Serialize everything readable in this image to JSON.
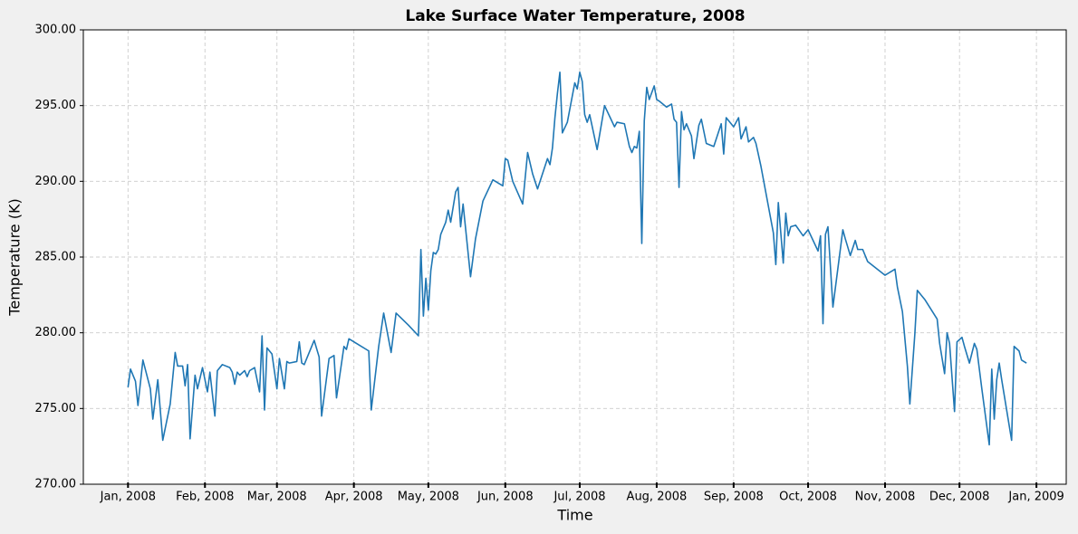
{
  "chart_data": {
    "type": "line",
    "title": "Lake Surface Water Temperature, 2008",
    "x_label": "Time",
    "y_label": "Temperature (K)",
    "xlim": [
      "2007-12-14",
      "2009-01-13"
    ],
    "xticks": [
      {
        "value": "2008-01-01",
        "label": "Jan, 2008"
      },
      {
        "value": "2008-02-01",
        "label": "Feb, 2008"
      },
      {
        "value": "2008-03-01",
        "label": "Mar, 2008"
      },
      {
        "value": "2008-04-01",
        "label": "Apr, 2008"
      },
      {
        "value": "2008-05-01",
        "label": "May, 2008"
      },
      {
        "value": "2008-06-01",
        "label": "Jun, 2008"
      },
      {
        "value": "2008-07-01",
        "label": "Jul, 2008"
      },
      {
        "value": "2008-08-01",
        "label": "Aug, 2008"
      },
      {
        "value": "2008-09-01",
        "label": "Sep, 2008"
      },
      {
        "value": "2008-10-01",
        "label": "Oct, 2008"
      },
      {
        "value": "2008-11-01",
        "label": "Nov, 2008"
      },
      {
        "value": "2008-12-01",
        "label": "Dec, 2008"
      },
      {
        "value": "2009-01-01",
        "label": "Jan, 2009"
      }
    ],
    "ylim": [
      270,
      300
    ],
    "yticks": [
      {
        "value": 270,
        "label": "270.00"
      },
      {
        "value": 275,
        "label": "275.00"
      },
      {
        "value": 280,
        "label": "280.00"
      },
      {
        "value": 285,
        "label": "285.00"
      },
      {
        "value": 290,
        "label": "290.00"
      },
      {
        "value": 295,
        "label": "295.00"
      },
      {
        "value": 300,
        "label": "300.00"
      }
    ],
    "grid": true,
    "color": "#1f77b4",
    "x": [
      "2008-01-01",
      "2008-01-02",
      "2008-01-04",
      "2008-01-05",
      "2008-01-07",
      "2008-01-10",
      "2008-01-11",
      "2008-01-13",
      "2008-01-15",
      "2008-01-18",
      "2008-01-20",
      "2008-01-21",
      "2008-01-23",
      "2008-01-24",
      "2008-01-25",
      "2008-01-26",
      "2008-01-28",
      "2008-01-29",
      "2008-01-31",
      "2008-02-02",
      "2008-02-03",
      "2008-02-05",
      "2008-02-06",
      "2008-02-08",
      "2008-02-11",
      "2008-02-12",
      "2008-02-13",
      "2008-02-14",
      "2008-02-15",
      "2008-02-17",
      "2008-02-18",
      "2008-02-19",
      "2008-02-21",
      "2008-02-23",
      "2008-02-24",
      "2008-02-25",
      "2008-02-26",
      "2008-02-28",
      "2008-03-01",
      "2008-03-02",
      "2008-03-04",
      "2008-03-05",
      "2008-03-06",
      "2008-03-09",
      "2008-03-10",
      "2008-03-11",
      "2008-03-12",
      "2008-03-16",
      "2008-03-18",
      "2008-03-19",
      "2008-03-22",
      "2008-03-24",
      "2008-03-25",
      "2008-03-28",
      "2008-03-29",
      "2008-03-30",
      "2008-04-07",
      "2008-04-08",
      "2008-04-11",
      "2008-04-13",
      "2008-04-16",
      "2008-04-18",
      "2008-04-23",
      "2008-04-27",
      "2008-04-28",
      "2008-04-29",
      "2008-04-30",
      "2008-05-01",
      "2008-05-02",
      "2008-05-03",
      "2008-05-04",
      "2008-05-05",
      "2008-05-06",
      "2008-05-08",
      "2008-05-09",
      "2008-05-10",
      "2008-05-12",
      "2008-05-13",
      "2008-05-14",
      "2008-05-15",
      "2008-05-18",
      "2008-05-20",
      "2008-05-23",
      "2008-05-27",
      "2008-05-31",
      "2008-06-01",
      "2008-06-02",
      "2008-06-04",
      "2008-06-08",
      "2008-06-10",
      "2008-06-12",
      "2008-06-14",
      "2008-06-17",
      "2008-06-18",
      "2008-06-19",
      "2008-06-20",
      "2008-06-21",
      "2008-06-22",
      "2008-06-23",
      "2008-06-24",
      "2008-06-26",
      "2008-06-29",
      "2008-06-30",
      "2008-07-01",
      "2008-07-02",
      "2008-07-03",
      "2008-07-04",
      "2008-07-05",
      "2008-07-08",
      "2008-07-11",
      "2008-07-13",
      "2008-07-15",
      "2008-07-16",
      "2008-07-19",
      "2008-07-21",
      "2008-07-22",
      "2008-07-23",
      "2008-07-24",
      "2008-07-25",
      "2008-07-26",
      "2008-07-27",
      "2008-07-28",
      "2008-07-29",
      "2008-07-31",
      "2008-08-01",
      "2008-08-02",
      "2008-08-05",
      "2008-08-07",
      "2008-08-08",
      "2008-08-09",
      "2008-08-10",
      "2008-08-11",
      "2008-08-12",
      "2008-08-13",
      "2008-08-15",
      "2008-08-16",
      "2008-08-18",
      "2008-08-19",
      "2008-08-21",
      "2008-08-24",
      "2008-08-27",
      "2008-08-28",
      "2008-08-29",
      "2008-08-30",
      "2008-09-01",
      "2008-09-03",
      "2008-09-04",
      "2008-09-06",
      "2008-09-07",
      "2008-09-09",
      "2008-09-10",
      "2008-09-12",
      "2008-09-17",
      "2008-09-18",
      "2008-09-19",
      "2008-09-21",
      "2008-09-22",
      "2008-09-23",
      "2008-09-24",
      "2008-09-26",
      "2008-09-29",
      "2008-10-01",
      "2008-10-05",
      "2008-10-06",
      "2008-10-07",
      "2008-10-08",
      "2008-10-09",
      "2008-10-11",
      "2008-10-15",
      "2008-10-16",
      "2008-10-18",
      "2008-10-20",
      "2008-10-21",
      "2008-10-23",
      "2008-10-25",
      "2008-11-01",
      "2008-11-05",
      "2008-11-06",
      "2008-11-08",
      "2008-11-10",
      "2008-11-11",
      "2008-11-13",
      "2008-11-14",
      "2008-11-17",
      "2008-11-22",
      "2008-11-23",
      "2008-11-25",
      "2008-11-26",
      "2008-11-27",
      "2008-11-29",
      "2008-11-30",
      "2008-12-02",
      "2008-12-03",
      "2008-12-05",
      "2008-12-07",
      "2008-12-08",
      "2008-12-10",
      "2008-12-13",
      "2008-12-14",
      "2008-12-15",
      "2008-12-16",
      "2008-12-17",
      "2008-12-18",
      "2008-12-22",
      "2008-12-23",
      "2008-12-25",
      "2008-12-26",
      "2008-12-28"
    ],
    "values": [
      276.4,
      277.6,
      276.8,
      275.2,
      278.2,
      276.3,
      274.3,
      276.9,
      272.9,
      275.3,
      278.7,
      277.8,
      277.8,
      276.5,
      277.9,
      273.0,
      277.2,
      276.3,
      277.7,
      276.1,
      277.4,
      274.5,
      277.5,
      277.9,
      277.7,
      277.4,
      276.6,
      277.4,
      277.2,
      277.5,
      277.1,
      277.5,
      277.7,
      276.1,
      279.8,
      274.9,
      279.0,
      278.6,
      276.3,
      278.3,
      276.3,
      278.1,
      278.0,
      278.1,
      279.4,
      278.0,
      277.9,
      279.5,
      278.4,
      274.5,
      278.3,
      278.5,
      275.7,
      279.1,
      278.9,
      279.6,
      278.8,
      274.9,
      279.1,
      281.3,
      278.7,
      281.3,
      280.5,
      279.8,
      285.5,
      281.1,
      283.6,
      281.5,
      284.1,
      285.3,
      285.2,
      285.5,
      286.5,
      287.3,
      288.1,
      287.3,
      289.3,
      289.6,
      287.0,
      288.5,
      283.7,
      286.2,
      288.7,
      290.1,
      289.7,
      291.5,
      291.4,
      290.0,
      288.5,
      291.9,
      290.5,
      289.5,
      291.0,
      291.5,
      291.1,
      292.2,
      294.2,
      295.8,
      297.2,
      293.2,
      293.9,
      296.5,
      296.1,
      297.2,
      296.6,
      294.4,
      293.9,
      294.4,
      292.1,
      295.0,
      294.3,
      293.6,
      293.9,
      293.8,
      292.3,
      291.9,
      292.3,
      292.2,
      293.3,
      285.9,
      294.0,
      296.2,
      295.4,
      296.3,
      295.4,
      295.3,
      294.9,
      295.1,
      294.1,
      293.9,
      289.6,
      294.6,
      293.4,
      293.8,
      293.0,
      291.5,
      293.7,
      294.1,
      292.5,
      292.3,
      293.8,
      291.8,
      294.2,
      294.0,
      293.6,
      294.2,
      292.8,
      293.6,
      292.6,
      292.9,
      292.5,
      291.0,
      286.6,
      284.5,
      288.6,
      284.6,
      287.9,
      286.4,
      287.0,
      287.1,
      286.4,
      286.8,
      285.4,
      286.4,
      280.6,
      286.5,
      287.0,
      281.7,
      286.8,
      286.2,
      285.1,
      286.1,
      285.5,
      285.5,
      284.7,
      283.8,
      284.2,
      283.0,
      281.4,
      277.8,
      275.3,
      279.9,
      282.8,
      282.2,
      280.9,
      279.3,
      277.3,
      280.0,
      279.3,
      274.8,
      279.4,
      279.7,
      279.1,
      278.0,
      279.3,
      278.9,
      276.3,
      272.6,
      277.6,
      274.3,
      276.9,
      278.0,
      276.9,
      272.9,
      279.1,
      278.8,
      278.2,
      278.0
    ]
  }
}
